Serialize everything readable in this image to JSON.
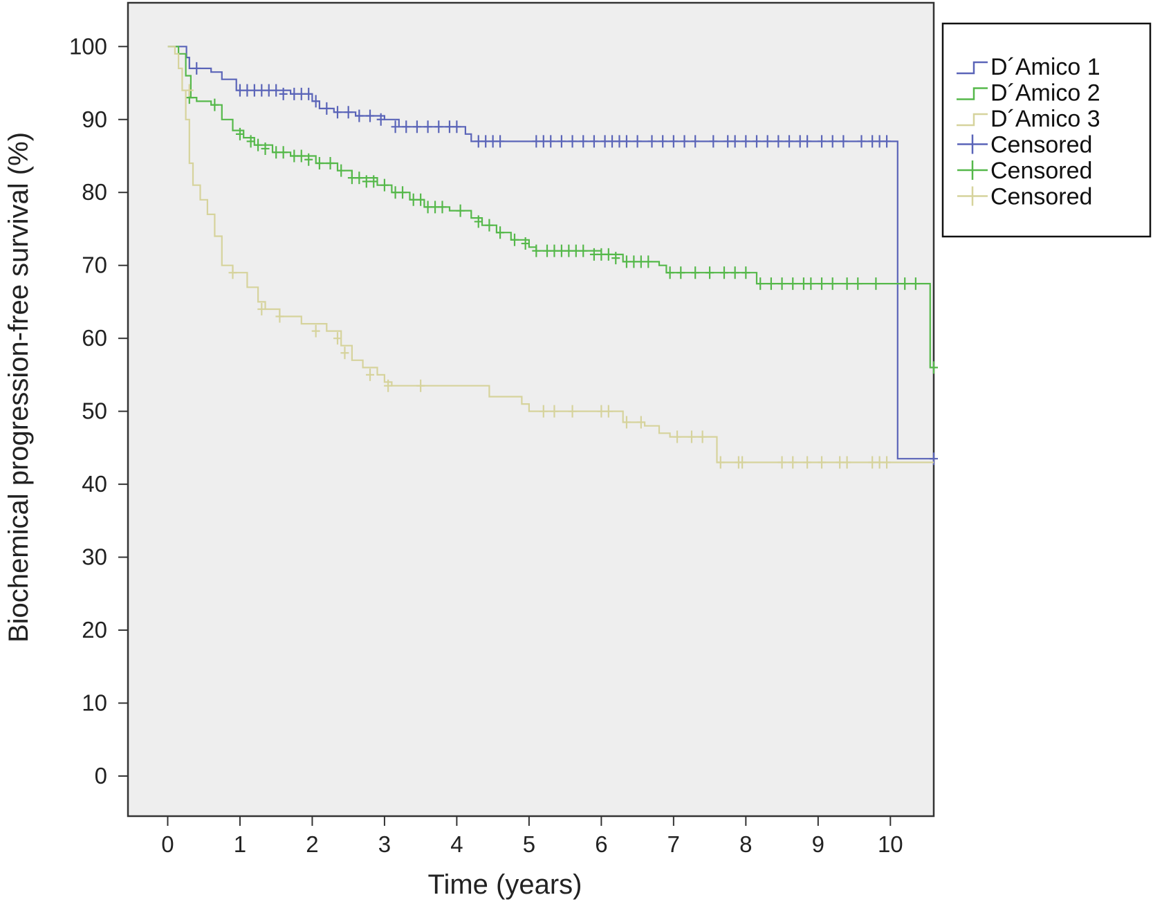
{
  "chart_data": {
    "type": "line",
    "xlabel": "Time (years)",
    "ylabel": "Biochemical progression-free survival (%)",
    "xlim": [
      -0.55,
      10.6
    ],
    "ylim": [
      -5.5,
      106
    ],
    "xticks": [
      0,
      1,
      2,
      3,
      4,
      5,
      6,
      7,
      8,
      9,
      10
    ],
    "yticks": [
      0,
      10,
      20,
      30,
      40,
      50,
      60,
      70,
      80,
      90,
      100
    ],
    "grid": false,
    "legend_position": "right",
    "background": "#eeeeee",
    "series": [
      {
        "name": "D´Amico 1",
        "color": "#5a64b8",
        "steps": [
          [
            0,
            100
          ],
          [
            0.22,
            100
          ],
          [
            0.26,
            98.5
          ],
          [
            0.3,
            97
          ],
          [
            0.6,
            96.5
          ],
          [
            0.75,
            95.5
          ],
          [
            0.95,
            94
          ],
          [
            1.6,
            94
          ],
          [
            1.7,
            93.5
          ],
          [
            2.0,
            92.5
          ],
          [
            2.1,
            91.5
          ],
          [
            2.3,
            91
          ],
          [
            2.6,
            90.5
          ],
          [
            3.0,
            90
          ],
          [
            3.2,
            89
          ],
          [
            4.05,
            89
          ],
          [
            4.12,
            88
          ],
          [
            4.2,
            87
          ],
          [
            10.1,
            87
          ],
          [
            10.1,
            43.5
          ],
          [
            10.6,
            43.5
          ]
        ],
        "censored": [
          [
            0.4,
            97
          ],
          [
            1.0,
            94
          ],
          [
            1.1,
            94
          ],
          [
            1.2,
            94
          ],
          [
            1.3,
            94
          ],
          [
            1.4,
            94
          ],
          [
            1.5,
            94
          ],
          [
            1.6,
            93.5
          ],
          [
            1.75,
            93.5
          ],
          [
            1.85,
            93.5
          ],
          [
            1.95,
            93.5
          ],
          [
            2.05,
            92.5
          ],
          [
            2.2,
            91.5
          ],
          [
            2.35,
            91
          ],
          [
            2.5,
            91
          ],
          [
            2.65,
            90.5
          ],
          [
            2.8,
            90.5
          ],
          [
            2.95,
            90
          ],
          [
            3.15,
            89
          ],
          [
            3.3,
            89
          ],
          [
            3.45,
            89
          ],
          [
            3.6,
            89
          ],
          [
            3.75,
            89
          ],
          [
            3.9,
            89
          ],
          [
            4.0,
            89
          ],
          [
            4.3,
            87
          ],
          [
            4.4,
            87
          ],
          [
            4.5,
            87
          ],
          [
            4.6,
            87
          ],
          [
            5.1,
            87
          ],
          [
            5.2,
            87
          ],
          [
            5.3,
            87
          ],
          [
            5.45,
            87
          ],
          [
            5.6,
            87
          ],
          [
            5.75,
            87
          ],
          [
            5.9,
            87
          ],
          [
            6.05,
            87
          ],
          [
            6.15,
            87
          ],
          [
            6.25,
            87
          ],
          [
            6.35,
            87
          ],
          [
            6.5,
            87
          ],
          [
            6.7,
            87
          ],
          [
            6.85,
            87
          ],
          [
            7.0,
            87
          ],
          [
            7.15,
            87
          ],
          [
            7.3,
            87
          ],
          [
            7.55,
            87
          ],
          [
            7.75,
            87
          ],
          [
            7.85,
            87
          ],
          [
            8.0,
            87
          ],
          [
            8.15,
            87
          ],
          [
            8.3,
            87
          ],
          [
            8.45,
            87
          ],
          [
            8.6,
            87
          ],
          [
            8.75,
            87
          ],
          [
            8.85,
            87
          ],
          [
            9.05,
            87
          ],
          [
            9.2,
            87
          ],
          [
            9.35,
            87
          ],
          [
            9.6,
            87
          ],
          [
            9.75,
            87
          ],
          [
            9.85,
            87
          ],
          [
            9.95,
            87
          ],
          [
            10.6,
            43.5
          ]
        ]
      },
      {
        "name": "D´Amico 2",
        "color": "#55b84a",
        "steps": [
          [
            0,
            100
          ],
          [
            0.15,
            99
          ],
          [
            0.25,
            96
          ],
          [
            0.32,
            93
          ],
          [
            0.4,
            92.5
          ],
          [
            0.6,
            92
          ],
          [
            0.75,
            90
          ],
          [
            0.9,
            88.5
          ],
          [
            1.05,
            87.5
          ],
          [
            1.2,
            86.5
          ],
          [
            1.45,
            85.5
          ],
          [
            1.7,
            85
          ],
          [
            2.05,
            84
          ],
          [
            2.35,
            83
          ],
          [
            2.55,
            82
          ],
          [
            2.9,
            81
          ],
          [
            3.1,
            80
          ],
          [
            3.35,
            79
          ],
          [
            3.55,
            78
          ],
          [
            3.9,
            77.5
          ],
          [
            4.2,
            76.5
          ],
          [
            4.35,
            75.5
          ],
          [
            4.55,
            74.5
          ],
          [
            4.75,
            73.5
          ],
          [
            5.0,
            72.5
          ],
          [
            5.1,
            72
          ],
          [
            5.8,
            72
          ],
          [
            6.0,
            71.5
          ],
          [
            6.3,
            70.5
          ],
          [
            6.8,
            70
          ],
          [
            6.9,
            69
          ],
          [
            8.1,
            69
          ],
          [
            8.15,
            67.5
          ],
          [
            10.55,
            67.5
          ],
          [
            10.55,
            56
          ],
          [
            10.6,
            56
          ]
        ],
        "censored": [
          [
            0.3,
            93
          ],
          [
            0.65,
            92
          ],
          [
            1.0,
            88
          ],
          [
            1.15,
            87
          ],
          [
            1.25,
            86.5
          ],
          [
            1.35,
            86
          ],
          [
            1.5,
            85.5
          ],
          [
            1.6,
            85.5
          ],
          [
            1.75,
            85
          ],
          [
            1.85,
            85
          ],
          [
            1.95,
            84.5
          ],
          [
            2.1,
            84
          ],
          [
            2.25,
            84
          ],
          [
            2.4,
            83
          ],
          [
            2.55,
            82
          ],
          [
            2.65,
            82
          ],
          [
            2.75,
            81.5
          ],
          [
            2.85,
            81.5
          ],
          [
            3.0,
            81
          ],
          [
            3.15,
            80
          ],
          [
            3.25,
            80
          ],
          [
            3.4,
            79
          ],
          [
            3.5,
            79
          ],
          [
            3.6,
            78
          ],
          [
            3.7,
            78
          ],
          [
            3.8,
            78
          ],
          [
            4.05,
            77.5
          ],
          [
            4.3,
            76
          ],
          [
            4.45,
            75.5
          ],
          [
            4.6,
            74.5
          ],
          [
            4.8,
            73.5
          ],
          [
            4.95,
            73
          ],
          [
            5.1,
            72
          ],
          [
            5.25,
            72
          ],
          [
            5.35,
            72
          ],
          [
            5.45,
            72
          ],
          [
            5.55,
            72
          ],
          [
            5.65,
            72
          ],
          [
            5.75,
            72
          ],
          [
            5.9,
            71.5
          ],
          [
            6.0,
            71.5
          ],
          [
            6.1,
            71.5
          ],
          [
            6.2,
            71
          ],
          [
            6.35,
            70.5
          ],
          [
            6.45,
            70.5
          ],
          [
            6.55,
            70.5
          ],
          [
            6.65,
            70.5
          ],
          [
            6.95,
            69
          ],
          [
            7.1,
            69
          ],
          [
            7.3,
            69
          ],
          [
            7.5,
            69
          ],
          [
            7.7,
            69
          ],
          [
            7.85,
            69
          ],
          [
            8.0,
            69
          ],
          [
            8.2,
            67.5
          ],
          [
            8.35,
            67.5
          ],
          [
            8.5,
            67.5
          ],
          [
            8.65,
            67.5
          ],
          [
            8.8,
            67.5
          ],
          [
            8.9,
            67.5
          ],
          [
            9.05,
            67.5
          ],
          [
            9.2,
            67.5
          ],
          [
            9.4,
            67.5
          ],
          [
            9.55,
            67.5
          ],
          [
            9.8,
            67.5
          ],
          [
            10.2,
            67.5
          ],
          [
            10.35,
            67.5
          ],
          [
            10.6,
            56
          ]
        ]
      },
      {
        "name": "D´Amico 3",
        "color": "#d6d39c",
        "steps": [
          [
            0,
            100
          ],
          [
            0.1,
            99
          ],
          [
            0.15,
            97
          ],
          [
            0.2,
            94
          ],
          [
            0.25,
            90
          ],
          [
            0.3,
            84
          ],
          [
            0.35,
            81
          ],
          [
            0.45,
            79
          ],
          [
            0.55,
            77
          ],
          [
            0.65,
            74
          ],
          [
            0.75,
            70
          ],
          [
            0.9,
            69
          ],
          [
            1.1,
            67
          ],
          [
            1.25,
            65
          ],
          [
            1.35,
            64
          ],
          [
            1.55,
            63
          ],
          [
            1.85,
            62
          ],
          [
            2.2,
            61
          ],
          [
            2.4,
            59
          ],
          [
            2.55,
            57
          ],
          [
            2.7,
            56
          ],
          [
            2.9,
            55
          ],
          [
            3.0,
            54
          ],
          [
            3.1,
            53.5
          ],
          [
            4.4,
            53.5
          ],
          [
            4.45,
            52
          ],
          [
            4.9,
            51
          ],
          [
            5.0,
            50
          ],
          [
            6.15,
            50
          ],
          [
            6.3,
            48.5
          ],
          [
            6.6,
            48
          ],
          [
            6.8,
            47
          ],
          [
            6.95,
            46.5
          ],
          [
            7.55,
            46.5
          ],
          [
            7.6,
            43
          ],
          [
            10.6,
            43
          ]
        ],
        "censored": [
          [
            0.3,
            94
          ],
          [
            0.9,
            69
          ],
          [
            1.3,
            64
          ],
          [
            1.55,
            63
          ],
          [
            2.05,
            61
          ],
          [
            2.35,
            60
          ],
          [
            2.45,
            58
          ],
          [
            2.8,
            55
          ],
          [
            3.05,
            53.5
          ],
          [
            3.5,
            53.5
          ],
          [
            5.2,
            50
          ],
          [
            5.35,
            50
          ],
          [
            5.6,
            50
          ],
          [
            6.0,
            50
          ],
          [
            6.1,
            50
          ],
          [
            6.35,
            48.5
          ],
          [
            6.55,
            48.5
          ],
          [
            7.05,
            46.5
          ],
          [
            7.25,
            46.5
          ],
          [
            7.4,
            46.5
          ],
          [
            7.65,
            43
          ],
          [
            7.9,
            43
          ],
          [
            7.95,
            43
          ],
          [
            8.5,
            43
          ],
          [
            8.65,
            43
          ],
          [
            8.85,
            43
          ],
          [
            9.05,
            43
          ],
          [
            9.3,
            43
          ],
          [
            9.4,
            43
          ],
          [
            9.75,
            43
          ],
          [
            9.85,
            43
          ],
          [
            9.95,
            43
          ]
        ]
      }
    ],
    "legend": [
      {
        "label": "D´Amico 1",
        "kind": "line",
        "color": "#5a64b8"
      },
      {
        "label": "D´Amico 2",
        "kind": "line",
        "color": "#55b84a"
      },
      {
        "label": "D´Amico 3",
        "kind": "line",
        "color": "#d6d39c"
      },
      {
        "label": "Censored",
        "kind": "cross",
        "color": "#5a64b8"
      },
      {
        "label": "Censored",
        "kind": "cross",
        "color": "#55b84a"
      },
      {
        "label": "Censored",
        "kind": "cross",
        "color": "#d6d39c"
      }
    ]
  }
}
